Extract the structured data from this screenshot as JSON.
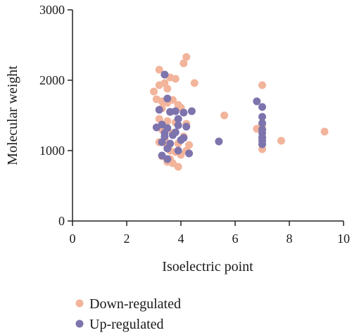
{
  "chart_data": {
    "type": "scatter",
    "xlabel": "Isoelectric point",
    "ylabel": "Molecular weight",
    "xlim": [
      0,
      10
    ],
    "ylim": [
      0,
      3000
    ],
    "x_ticks": [
      "0",
      "2",
      "4",
      "6",
      "8",
      "10"
    ],
    "y_ticks": [
      "0",
      "1000",
      "2000",
      "3000"
    ],
    "grid": false,
    "legend_position": "bottom-left",
    "series": [
      {
        "name": "Down-regulated",
        "color": "#f2b49b",
        "points": [
          [
            3.2,
            2150
          ],
          [
            3.4,
            2080
          ],
          [
            3.6,
            2040
          ],
          [
            3.8,
            2020
          ],
          [
            4.2,
            2330
          ],
          [
            4.1,
            2240
          ],
          [
            4.5,
            1960
          ],
          [
            3.0,
            1840
          ],
          [
            3.1,
            1730
          ],
          [
            3.3,
            1700
          ],
          [
            3.5,
            1680
          ],
          [
            3.7,
            1720
          ],
          [
            3.2,
            1930
          ],
          [
            3.4,
            1960
          ],
          [
            3.5,
            1880
          ],
          [
            3.9,
            1650
          ],
          [
            4.0,
            1610
          ],
          [
            3.3,
            1600
          ],
          [
            3.6,
            1550
          ],
          [
            3.2,
            1450
          ],
          [
            3.5,
            1420
          ],
          [
            3.8,
            1400
          ],
          [
            4.2,
            1380
          ],
          [
            3.3,
            1300
          ],
          [
            3.7,
            1250
          ],
          [
            4.1,
            1200
          ],
          [
            3.4,
            1150
          ],
          [
            3.9,
            1100
          ],
          [
            4.3,
            1080
          ],
          [
            3.5,
            1050
          ],
          [
            3.8,
            980
          ],
          [
            4.2,
            1000
          ],
          [
            3.3,
            920
          ],
          [
            3.6,
            880
          ],
          [
            3.5,
            840
          ],
          [
            3.7,
            820
          ],
          [
            3.9,
            770
          ],
          [
            3.2,
            1120
          ],
          [
            3.6,
            1000
          ],
          [
            4.0,
            940
          ],
          [
            5.6,
            1500
          ],
          [
            6.8,
            1310
          ],
          [
            7.0,
            1930
          ],
          [
            7.0,
            1360
          ],
          [
            7.0,
            1180
          ],
          [
            7.0,
            1020
          ],
          [
            7.7,
            1140
          ],
          [
            9.3,
            1270
          ]
        ]
      },
      {
        "name": "Up-regulated",
        "color": "#7e74ad",
        "points": [
          [
            3.4,
            2080
          ],
          [
            3.5,
            1740
          ],
          [
            3.2,
            1580
          ],
          [
            3.6,
            1550
          ],
          [
            3.8,
            1560
          ],
          [
            4.1,
            1540
          ],
          [
            4.4,
            1560
          ],
          [
            3.9,
            1450
          ],
          [
            3.3,
            1370
          ],
          [
            3.1,
            1330
          ],
          [
            3.5,
            1320
          ],
          [
            3.9,
            1360
          ],
          [
            4.2,
            1340
          ],
          [
            3.4,
            1250
          ],
          [
            3.7,
            1220
          ],
          [
            4.1,
            1180
          ],
          [
            3.3,
            1120
          ],
          [
            3.6,
            1100
          ],
          [
            3.5,
            1030
          ],
          [
            3.9,
            1000
          ],
          [
            4.3,
            960
          ],
          [
            3.3,
            930
          ],
          [
            3.5,
            880
          ],
          [
            4.0,
            1150
          ],
          [
            3.4,
            1200
          ],
          [
            3.8,
            1260
          ],
          [
            5.4,
            1130
          ],
          [
            6.8,
            1700
          ],
          [
            7.0,
            1620
          ],
          [
            7.0,
            1480
          ],
          [
            7.0,
            1390
          ],
          [
            7.0,
            1300
          ],
          [
            7.0,
            1250
          ],
          [
            7.0,
            1190
          ],
          [
            7.0,
            1140
          ],
          [
            7.0,
            1090
          ]
        ]
      }
    ]
  }
}
